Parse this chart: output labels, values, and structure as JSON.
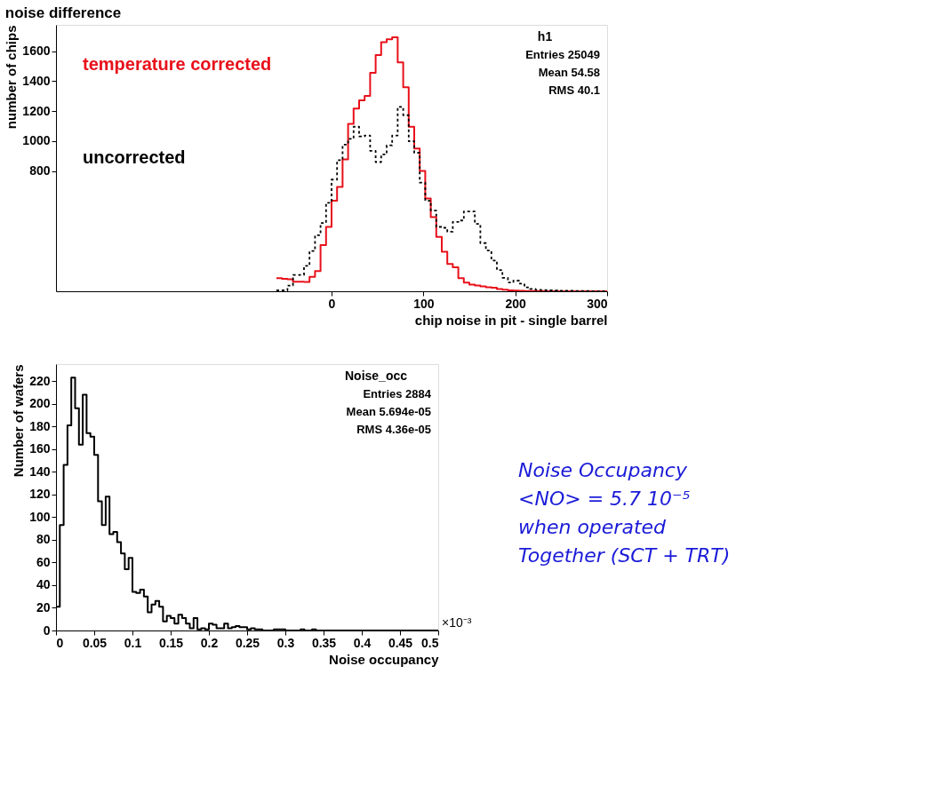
{
  "chart_data": [
    {
      "type": "histogram",
      "title": "noise difference",
      "xlabel": "chip noise in pit - single barrel",
      "ylabel": "number of chips",
      "xlim": [
        -300,
        300
      ],
      "xticks": [
        0,
        100,
        200,
        300
      ],
      "ylim": [
        0,
        1775
      ],
      "yticks": [
        800,
        1000,
        1200,
        1400,
        1600
      ],
      "bins": [
        -60,
        -54,
        -48,
        -42,
        -36,
        -30,
        -24,
        -18,
        -12,
        -6,
        0,
        6,
        12,
        18,
        24,
        30,
        36,
        42,
        48,
        54,
        60,
        66,
        72,
        78,
        84,
        90,
        96,
        102,
        108,
        114,
        120,
        126,
        132,
        138,
        144,
        150,
        156,
        162,
        168,
        174,
        180,
        186,
        192,
        198,
        204,
        210,
        216,
        222,
        228,
        234,
        240,
        246,
        252,
        258,
        264,
        270,
        276,
        282,
        288,
        294,
        300
      ],
      "series": [
        {
          "name": "temperature corrected",
          "color": "#e8101a",
          "line_style": "solid",
          "values": [
            87,
            83,
            80,
            64,
            64,
            62,
            96,
            135,
            308,
            429,
            603,
            695,
            878,
            1115,
            1218,
            1272,
            1301,
            1455,
            1574,
            1660,
            1679,
            1692,
            1525,
            1359,
            1096,
            951,
            801,
            618,
            494,
            362,
            263,
            182,
            160,
            87,
            58,
            45,
            38,
            32,
            26,
            23,
            15,
            10,
            6,
            4,
            3,
            2,
            1,
            1,
            1,
            0,
            0,
            0,
            0,
            0,
            0,
            0,
            0,
            0,
            0,
            0
          ]
        },
        {
          "name": "uncorrected",
          "color": "#000000",
          "line_style": "dotted",
          "values": [
            6,
            6,
            38,
            109,
            109,
            169,
            269,
            374,
            455,
            590,
            744,
            874,
            977,
            1015,
            1096,
            1032,
            1038,
            936,
            861,
            912,
            972,
            1038,
            1228,
            1173,
            1000,
            923,
            724,
            603,
            538,
            429,
            423,
            397,
            462,
            472,
            532,
            532,
            449,
            321,
            272,
            205,
            141,
            90,
            58,
            71,
            51,
            26,
            15,
            10,
            8,
            6,
            5,
            4,
            3,
            3,
            2,
            2,
            2,
            1,
            1,
            1
          ]
        }
      ],
      "annotations": [
        "h1",
        "Entries 25049",
        "Mean 54.58",
        "RMS 40.1"
      ]
    },
    {
      "type": "histogram",
      "xlabel": "Noise occupancy",
      "ylabel": "Number of wafers",
      "xlim": [
        0,
        0.5
      ],
      "xticks": [
        0,
        0.05,
        0.1,
        0.15,
        0.2,
        0.25,
        0.3,
        0.35,
        0.4,
        0.45,
        0.5
      ],
      "ylim": [
        0,
        235
      ],
      "yticks": [
        0,
        20,
        40,
        60,
        80,
        100,
        120,
        140,
        160,
        180,
        200,
        220
      ],
      "bins": [
        0,
        0.005,
        0.01,
        0.015,
        0.02,
        0.025,
        0.03,
        0.035,
        0.04,
        0.045,
        0.05,
        0.055,
        0.06,
        0.065,
        0.07,
        0.075,
        0.08,
        0.085,
        0.09,
        0.095,
        0.1,
        0.105,
        0.11,
        0.115,
        0.12,
        0.125,
        0.13,
        0.135,
        0.14,
        0.145,
        0.15,
        0.155,
        0.16,
        0.165,
        0.17,
        0.175,
        0.18,
        0.185,
        0.19,
        0.195,
        0.2,
        0.205,
        0.21,
        0.215,
        0.22,
        0.225,
        0.23,
        0.235,
        0.24,
        0.245,
        0.25,
        0.255,
        0.26,
        0.265,
        0.27,
        0.275,
        0.28,
        0.285,
        0.29,
        0.295,
        0.3,
        0.305,
        0.31,
        0.315,
        0.32,
        0.325,
        0.33,
        0.335,
        0.34,
        0.345,
        0.35,
        0.355,
        0.36,
        0.365,
        0.37,
        0.375,
        0.38,
        0.385,
        0.39,
        0.395,
        0.4,
        0.405,
        0.41,
        0.415,
        0.42,
        0.425,
        0.43,
        0.435,
        0.44,
        0.445,
        0.45,
        0.455,
        0.46,
        0.465,
        0.47,
        0.475,
        0.48,
        0.485,
        0.49,
        0.495,
        0.5
      ],
      "series": [
        {
          "color": "#000000",
          "line_style": "solid",
          "values": [
            21,
            93,
            146,
            181,
            223,
            196,
            164,
            208,
            174,
            171,
            155,
            114,
            93,
            118,
            85,
            87,
            78,
            68,
            54,
            64,
            34,
            33,
            36,
            30,
            16,
            23,
            26,
            21,
            8,
            13,
            11,
            6,
            14,
            11,
            6,
            2,
            11,
            1,
            2,
            1,
            6,
            5,
            2,
            2,
            6,
            2,
            3,
            4,
            3,
            3,
            1,
            2,
            1,
            1,
            0,
            0,
            0,
            1,
            1,
            1,
            0,
            0,
            0,
            0,
            1,
            0,
            0,
            1,
            0,
            0,
            0,
            0,
            0,
            0,
            0,
            0,
            0,
            0,
            0,
            0,
            0,
            0,
            0,
            0,
            0,
            0,
            0,
            0,
            0,
            0,
            0,
            0,
            0,
            0,
            0,
            0,
            0,
            0,
            0,
            0
          ]
        }
      ],
      "annotations": [
        "Noise_occ",
        "Entries 2884",
        "Mean 5.694e-05",
        "RMS 4.36e-05",
        "×10⁻³",
        "Noise Occupancy",
        "<NO> = 5.7 10⁻⁵",
        "when operated",
        "Together (SCT + TRT)"
      ]
    }
  ]
}
